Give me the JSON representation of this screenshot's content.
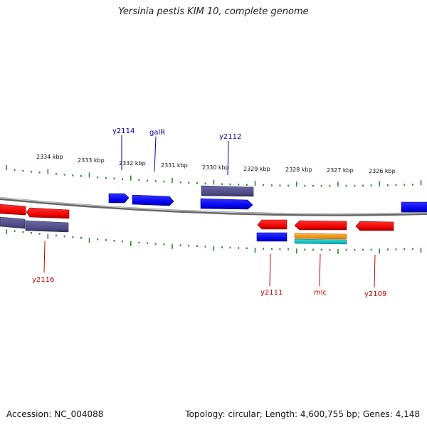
{
  "title": "Yersinia pestis KIM 10, complete genome",
  "footer": {
    "accession": "Accession: NC_004088",
    "summary": "Topology: circular; Length: 4,600,755 bp; Genes: 4,148"
  },
  "colors": {
    "forward_cds": "#0000ee",
    "reverse_cds": "#ee0000",
    "rna_orange": "#ff9900",
    "rna_cyan": "#00cccc",
    "other_feature": "#4d4a85",
    "backbone": "#888888",
    "tick": "#2e8b2e",
    "label_forward": "#0000aa",
    "label_reverse": "#cc0000"
  },
  "scale_labels": [
    "2334 kbp",
    "2333 kbp",
    "2332 kbp",
    "2331 kbp",
    "2330 kbp",
    "2329 kbp",
    "2328 kbp",
    "2327 kbp",
    "2326 kbp"
  ],
  "gene_labels": {
    "top": [
      "y2114",
      "galR",
      "y2112"
    ],
    "bottom": [
      "y2116",
      "y2111",
      "mlc",
      "y2109"
    ]
  }
}
